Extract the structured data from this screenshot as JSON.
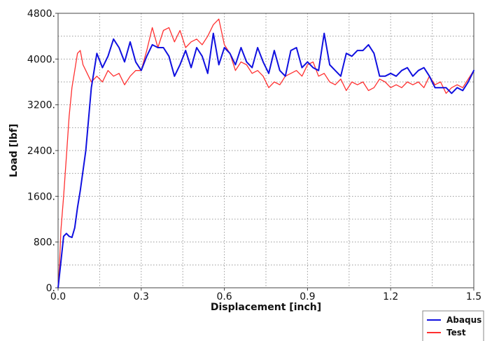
{
  "chart_data": {
    "type": "line",
    "xlabel": "Displacement [inch]",
    "ylabel": "Load [lbf]",
    "xlim": [
      0,
      1.5
    ],
    "ylim": [
      0,
      4800
    ],
    "grid": true,
    "grid_style": "dotted",
    "legend_position": "bottom-right, outside plot",
    "x_ticks": [
      0.0,
      0.3,
      0.6,
      0.9,
      1.2,
      1.5
    ],
    "x_tick_labels": [
      "0.0",
      "0.3",
      "0.6",
      "0.9",
      "1.2",
      "1.5"
    ],
    "y_ticks": [
      0,
      800,
      1600,
      2400,
      3200,
      4000,
      4800
    ],
    "y_tick_labels": [
      "0.",
      "800.",
      "1600.",
      "2400.",
      "3200.",
      "4000.",
      "4800."
    ],
    "series": [
      {
        "name": "Abaqus",
        "color": "#1010e0",
        "x": [
          0.0,
          0.01,
          0.02,
          0.03,
          0.04,
          0.05,
          0.06,
          0.07,
          0.08,
          0.1,
          0.12,
          0.13,
          0.14,
          0.16,
          0.18,
          0.2,
          0.22,
          0.24,
          0.26,
          0.28,
          0.3,
          0.32,
          0.34,
          0.36,
          0.38,
          0.4,
          0.42,
          0.44,
          0.46,
          0.48,
          0.5,
          0.52,
          0.54,
          0.56,
          0.58,
          0.6,
          0.62,
          0.64,
          0.66,
          0.68,
          0.7,
          0.72,
          0.74,
          0.76,
          0.78,
          0.8,
          0.82,
          0.84,
          0.86,
          0.88,
          0.9,
          0.92,
          0.94,
          0.96,
          0.98,
          1.0,
          1.02,
          1.04,
          1.06,
          1.08,
          1.1,
          1.12,
          1.14,
          1.16,
          1.18,
          1.2,
          1.22,
          1.24,
          1.26,
          1.28,
          1.3,
          1.32,
          1.34,
          1.36,
          1.38,
          1.4,
          1.42,
          1.44,
          1.46,
          1.48,
          1.5
        ],
        "y": [
          0,
          450,
          900,
          950,
          900,
          880,
          1050,
          1400,
          1700,
          2400,
          3500,
          3800,
          4100,
          3850,
          4050,
          4350,
          4200,
          3950,
          4300,
          3950,
          3800,
          4050,
          4250,
          4200,
          4200,
          4050,
          3700,
          3900,
          4150,
          3850,
          4200,
          4050,
          3750,
          4450,
          3900,
          4200,
          4100,
          3900,
          4200,
          3950,
          3850,
          4200,
          3950,
          3750,
          4150,
          3800,
          3700,
          4150,
          4200,
          3850,
          3950,
          3850,
          3800,
          4450,
          3900,
          3800,
          3700,
          4100,
          4050,
          4150,
          4150,
          4250,
          4100,
          3700,
          3700,
          3750,
          3700,
          3800,
          3850,
          3700,
          3800,
          3850,
          3700,
          3500,
          3500,
          3500,
          3400,
          3500,
          3450,
          3600,
          3800
        ]
      },
      {
        "name": "Test",
        "color": "#ff3030",
        "x": [
          0.0,
          0.005,
          0.01,
          0.02,
          0.03,
          0.04,
          0.05,
          0.06,
          0.07,
          0.08,
          0.09,
          0.1,
          0.12,
          0.14,
          0.16,
          0.18,
          0.2,
          0.22,
          0.24,
          0.26,
          0.28,
          0.3,
          0.32,
          0.34,
          0.36,
          0.38,
          0.4,
          0.42,
          0.44,
          0.46,
          0.48,
          0.5,
          0.52,
          0.54,
          0.56,
          0.58,
          0.6,
          0.62,
          0.64,
          0.66,
          0.68,
          0.7,
          0.72,
          0.74,
          0.76,
          0.78,
          0.8,
          0.82,
          0.84,
          0.86,
          0.88,
          0.9,
          0.92,
          0.94,
          0.96,
          0.98,
          1.0,
          1.02,
          1.04,
          1.06,
          1.08,
          1.1,
          1.12,
          1.14,
          1.16,
          1.18,
          1.2,
          1.22,
          1.24,
          1.26,
          1.28,
          1.3,
          1.32,
          1.34,
          1.36,
          1.38,
          1.4,
          1.42,
          1.44,
          1.46,
          1.48,
          1.5
        ],
        "y": [
          0,
          400,
          1000,
          1600,
          2300,
          3000,
          3500,
          3800,
          4100,
          4150,
          3900,
          3800,
          3600,
          3700,
          3600,
          3800,
          3700,
          3750,
          3550,
          3700,
          3800,
          3800,
          4150,
          4550,
          4200,
          4500,
          4550,
          4300,
          4500,
          4200,
          4300,
          4350,
          4250,
          4400,
          4600,
          4700,
          4250,
          4100,
          3800,
          3950,
          3900,
          3750,
          3800,
          3700,
          3500,
          3600,
          3550,
          3700,
          3750,
          3800,
          3700,
          3900,
          3950,
          3700,
          3750,
          3600,
          3550,
          3650,
          3450,
          3600,
          3550,
          3600,
          3450,
          3500,
          3650,
          3600,
          3500,
          3550,
          3500,
          3600,
          3550,
          3600,
          3500,
          3700,
          3550,
          3600,
          3400,
          3500,
          3550,
          3500,
          3650,
          3800
        ]
      }
    ]
  }
}
